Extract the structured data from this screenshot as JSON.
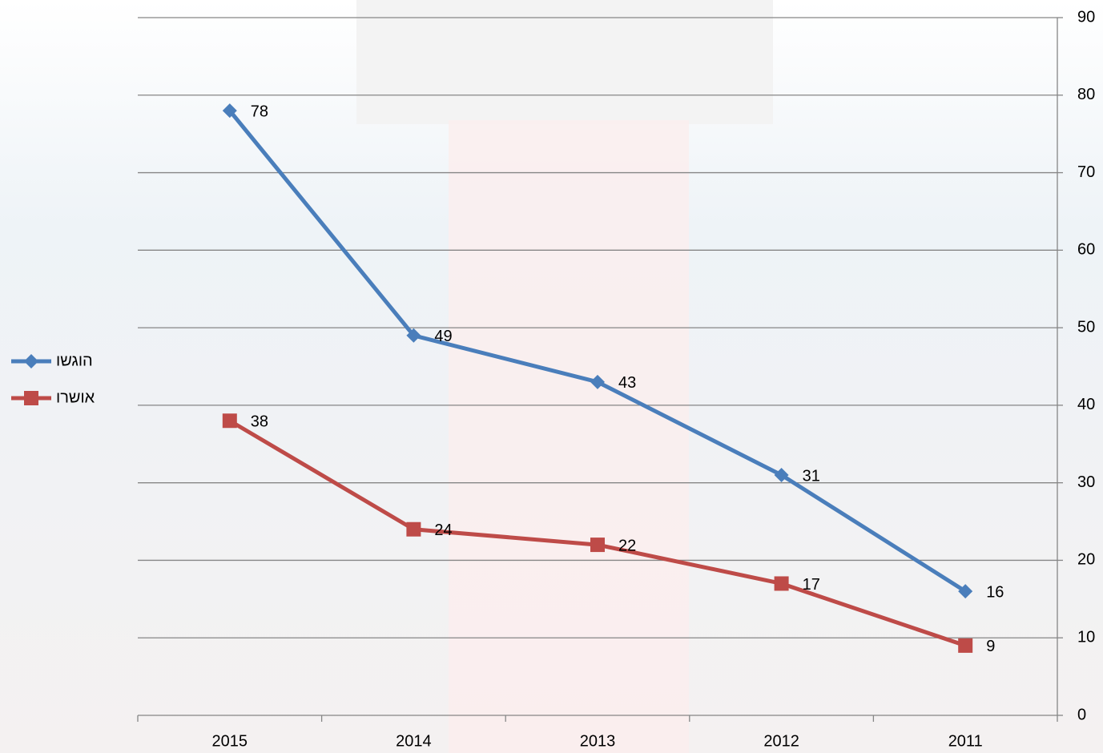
{
  "chart_data": {
    "type": "line",
    "categories": [
      "2015",
      "2014",
      "2013",
      "2012",
      "2011"
    ],
    "series": [
      {
        "name": "הוגשו",
        "color": "#4a7ebb",
        "marker": "diamond",
        "values": [
          78,
          49,
          43,
          31,
          16
        ]
      },
      {
        "name": "אושרו",
        "color": "#be4b48",
        "marker": "square",
        "values": [
          38,
          24,
          22,
          17,
          9
        ]
      }
    ],
    "ylim": [
      0,
      90
    ],
    "yticks": [
      0,
      10,
      20,
      30,
      40,
      50,
      60,
      70,
      80,
      90
    ],
    "grid": true,
    "y_axis_side": "right",
    "x_reversed": true,
    "legend": "left"
  }
}
